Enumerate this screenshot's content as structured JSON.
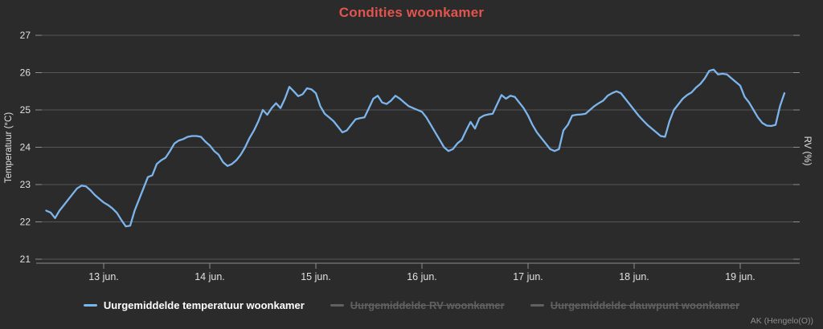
{
  "title": "Condities woonkamer",
  "watermark": "AK (Hengelo(O))",
  "colors": {
    "background": "#2b2b2b",
    "title": "#e3544e",
    "series_temperature": "#7cb5ec",
    "gridline": "#555555",
    "axis_line": "#8e8e8e",
    "tick_label": "#e0e0e3",
    "axis_title": "#e0e0e3",
    "legend_active": "#ffffff",
    "legend_hidden": "#616161"
  },
  "y_axis": {
    "title": "Temperatuur (°C)",
    "tick_labels": [
      "27",
      "26",
      "25",
      "24",
      "23",
      "22",
      "21"
    ],
    "min": 21,
    "max": 27
  },
  "y_axis_right": {
    "title": "RV (%)"
  },
  "x_axis": {
    "tick_labels": [
      "13 jun.",
      "14 jun.",
      "15 jun.",
      "16 jun.",
      "17 jun.",
      "18 jun.",
      "19 jun."
    ]
  },
  "legend": {
    "items": [
      {
        "id": "temperatuur",
        "label": "Uurgemiddelde temperatuur woonkamer",
        "color": "#7cb5ec",
        "hidden": false
      },
      {
        "id": "rv",
        "label": "Uurgemiddelde RV woonkamer",
        "color": "#616161",
        "hidden": true
      },
      {
        "id": "dauwpunt",
        "label": "Uurgemiddelde dauwpunt woonkamer",
        "color": "#616161",
        "hidden": true
      }
    ]
  },
  "chart_data": {
    "type": "line",
    "title": "Condities woonkamer",
    "xlabel": "",
    "ylabel": "Temperatuur (°C)",
    "ylabel_right": "RV (%)",
    "ylim": [
      21,
      27
    ],
    "grid": "horizontal",
    "legend_position": "bottom",
    "x_tick_labels": [
      "13 jun.",
      "14 jun.",
      "15 jun.",
      "16 jun.",
      "17 jun.",
      "18 jun.",
      "19 jun."
    ],
    "series": [
      {
        "name": "Uurgemiddelde temperatuur woonkamer",
        "color": "#7cb5ec",
        "visible": true,
        "start": "12 jun. 11:00",
        "interval_hours": 1,
        "values": [
          22.3,
          22.25,
          22.1,
          22.3,
          22.45,
          22.6,
          22.75,
          22.9,
          22.97,
          22.95,
          22.85,
          22.72,
          22.62,
          22.52,
          22.45,
          22.36,
          22.24,
          22.05,
          21.88,
          21.9,
          22.3,
          22.6,
          22.9,
          23.2,
          23.25,
          23.55,
          23.65,
          23.72,
          23.9,
          24.1,
          24.18,
          24.22,
          24.28,
          24.3,
          24.3,
          24.28,
          24.15,
          24.05,
          23.9,
          23.8,
          23.6,
          23.5,
          23.55,
          23.65,
          23.8,
          24.0,
          24.25,
          24.45,
          24.7,
          25.0,
          24.87,
          25.05,
          25.18,
          25.05,
          25.3,
          25.62,
          25.5,
          25.37,
          25.42,
          25.58,
          25.55,
          25.45,
          25.1,
          24.9,
          24.8,
          24.7,
          24.55,
          24.4,
          24.45,
          24.6,
          24.75,
          24.78,
          24.8,
          25.05,
          25.3,
          25.38,
          25.2,
          25.16,
          25.25,
          25.38,
          25.3,
          25.2,
          25.1,
          25.05,
          25.0,
          24.95,
          24.8,
          24.6,
          24.4,
          24.2,
          24.0,
          23.9,
          23.95,
          24.1,
          24.2,
          24.45,
          24.68,
          24.5,
          24.78,
          24.85,
          24.88,
          24.9,
          25.15,
          25.4,
          25.3,
          25.38,
          25.35,
          25.2,
          25.05,
          24.85,
          24.6,
          24.4,
          24.25,
          24.1,
          23.95,
          23.9,
          23.95,
          24.45,
          24.6,
          24.85,
          24.87,
          24.88,
          24.9,
          25.0,
          25.1,
          25.18,
          25.25,
          25.38,
          25.45,
          25.5,
          25.45,
          25.3,
          25.15,
          25.0,
          24.85,
          24.72,
          24.6,
          24.5,
          24.4,
          24.3,
          24.28,
          24.7,
          25.0,
          25.15,
          25.3,
          25.4,
          25.47,
          25.6,
          25.7,
          25.85,
          26.05,
          26.08,
          25.95,
          25.97,
          25.95,
          25.85,
          25.75,
          25.65,
          25.35,
          25.2,
          25.0,
          24.8,
          24.65,
          24.58,
          24.57,
          24.6,
          25.1,
          25.45
        ]
      },
      {
        "name": "Uurgemiddelde RV woonkamer",
        "visible": false,
        "values": []
      },
      {
        "name": "Uurgemiddelde dauwpunt woonkamer",
        "visible": false,
        "values": []
      }
    ]
  }
}
